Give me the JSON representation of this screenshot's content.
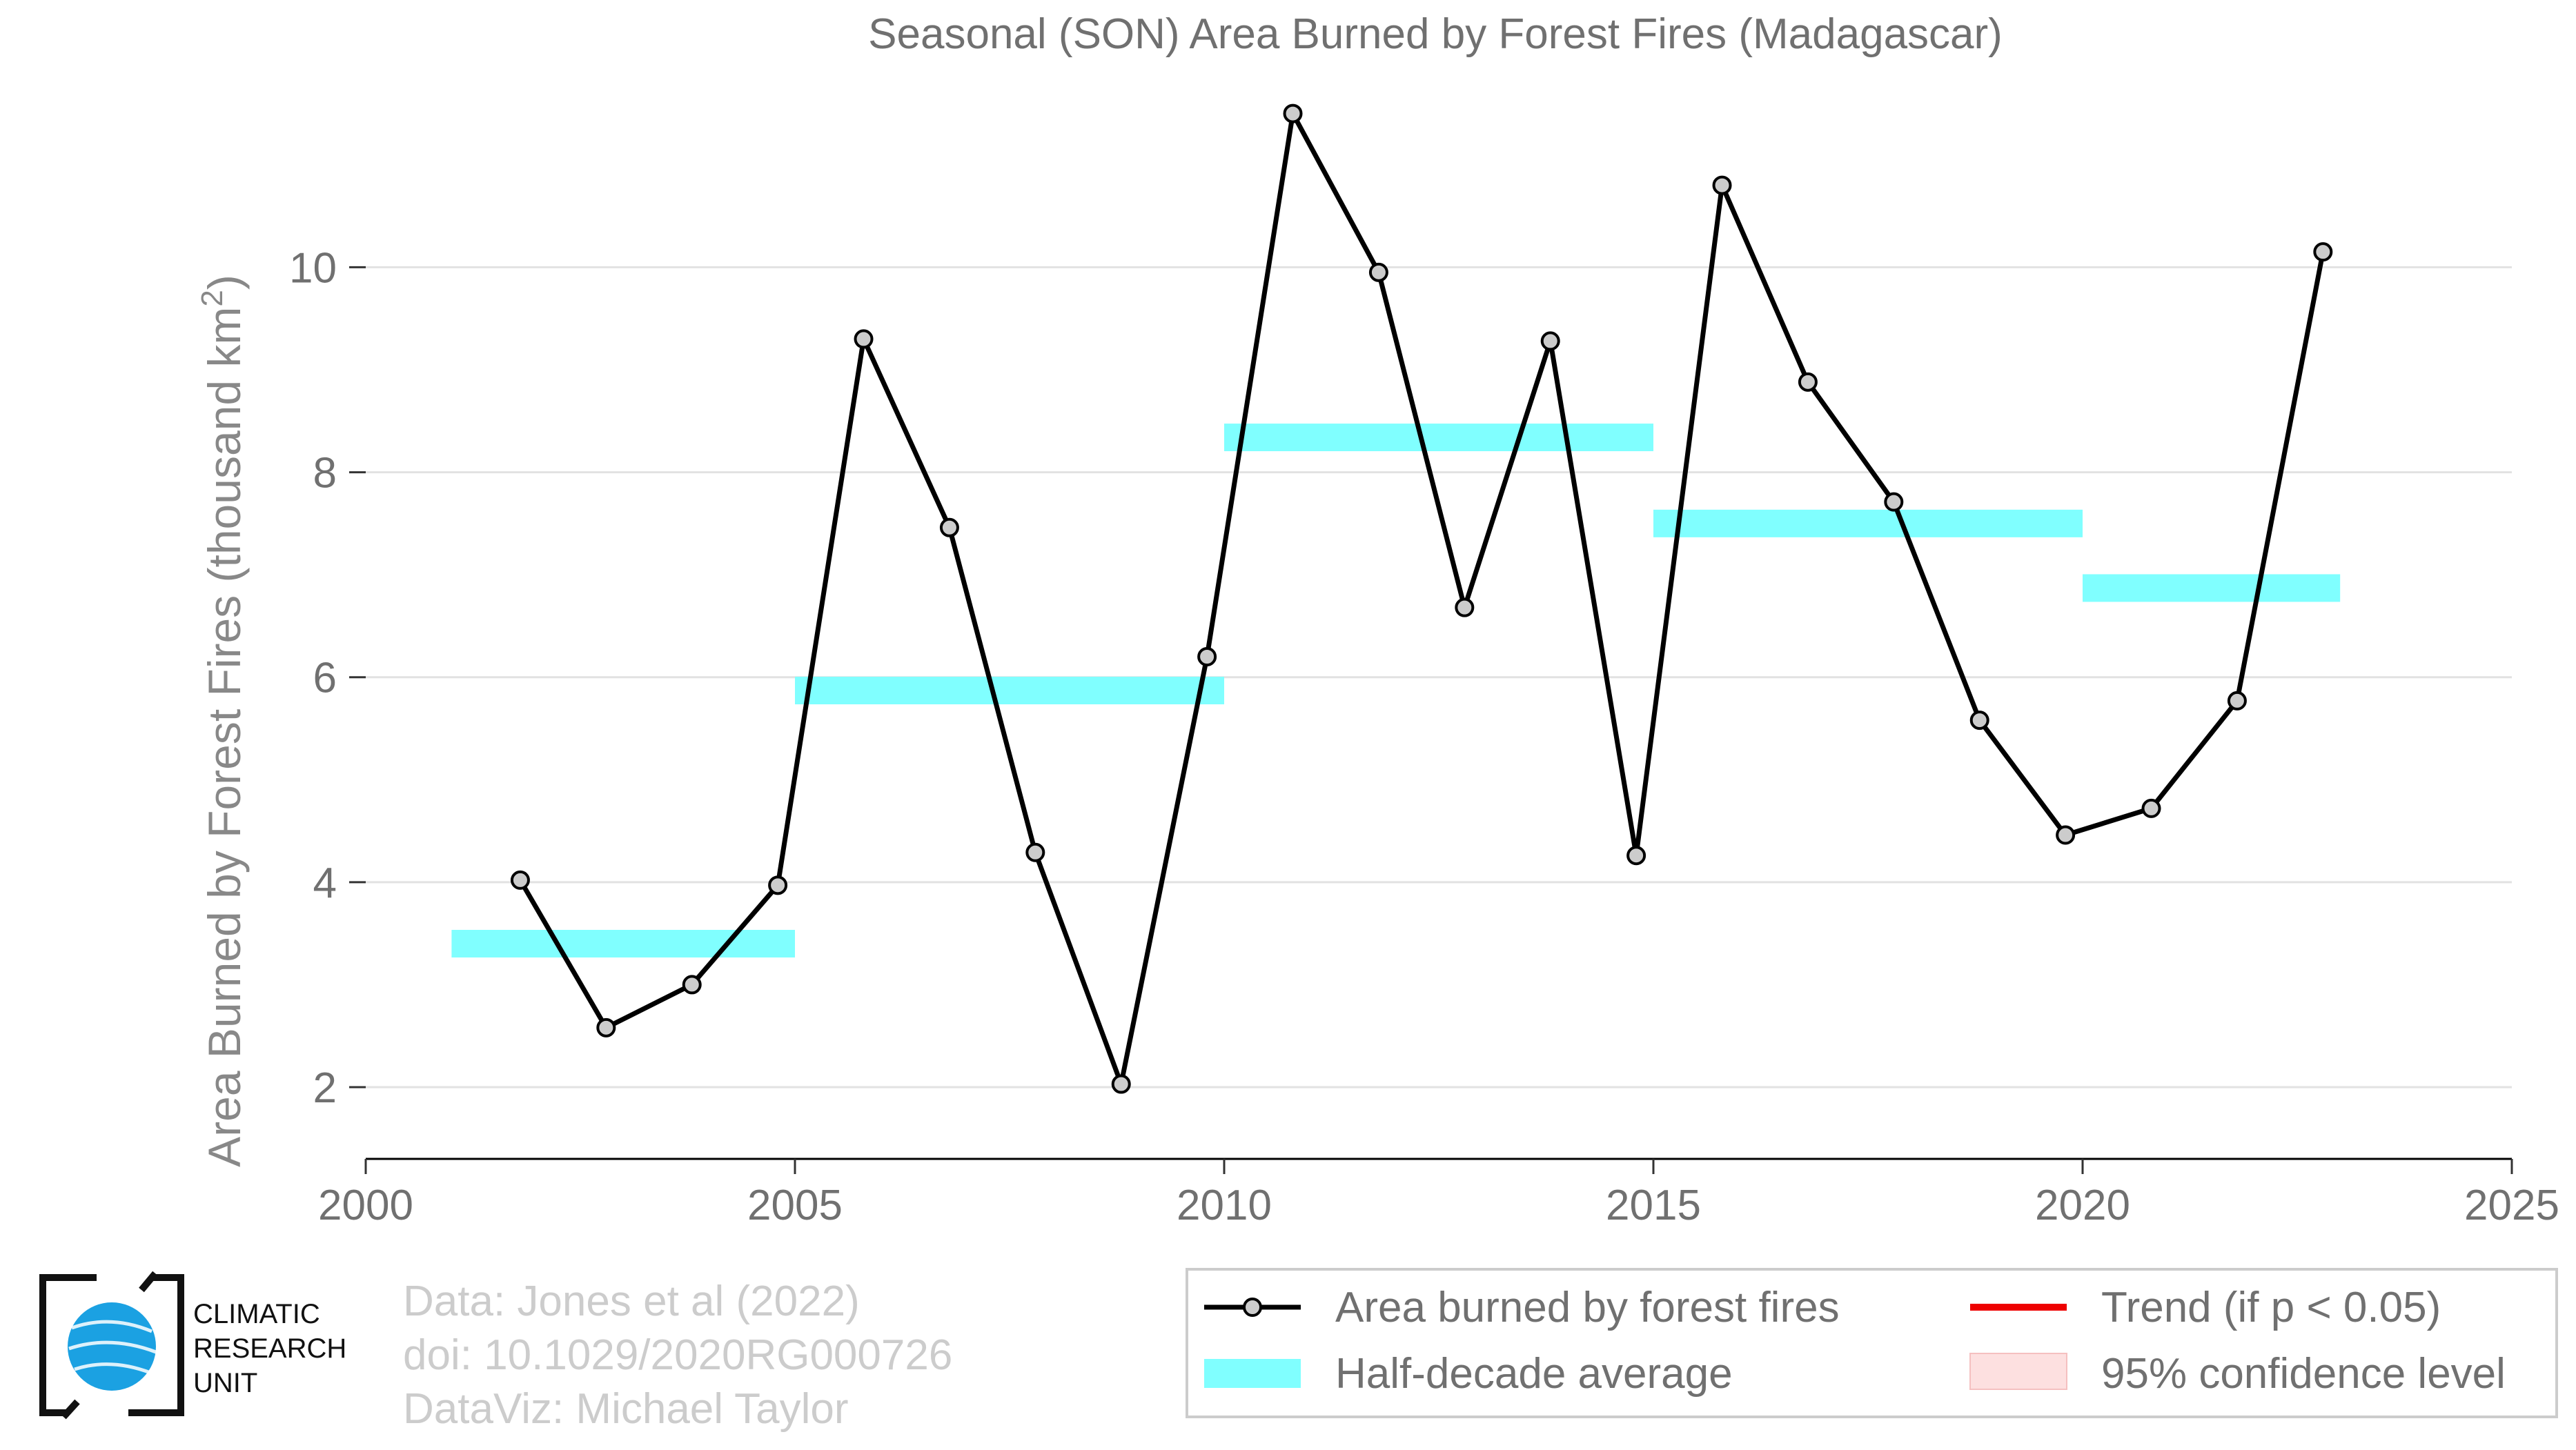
{
  "chart_data": {
    "type": "line",
    "title": "Seasonal (SON) Area Burned by Forest Fires (Madagascar)",
    "xlabel": "",
    "ylabel_main": "Area Burned by Forest Fires (thousand km",
    "ylabel_sup": "2",
    "ylabel_end": ")",
    "xlim": [
      2000,
      2025
    ],
    "ylim": [
      1.3,
      11.8
    ],
    "xticks": [
      2000,
      2005,
      2010,
      2015,
      2020,
      2025
    ],
    "xtick_labels": [
      "2000",
      "2005",
      "2010",
      "2015",
      "2020",
      "2025"
    ],
    "yticks": [
      2,
      4,
      6,
      8,
      10
    ],
    "ytick_labels": [
      "2",
      "4",
      "6",
      "8",
      "10"
    ],
    "grid": "horizontal",
    "series": [
      {
        "name": "Area burned by forest fires",
        "color": "#000000",
        "marker_fill": "#cccccc",
        "x": [
          2001.8,
          2002.8,
          2003.8,
          2004.8,
          2005.8,
          2006.8,
          2007.8,
          2008.8,
          2009.8,
          2010.8,
          2011.8,
          2012.8,
          2013.8,
          2014.8,
          2015.8,
          2016.8,
          2017.8,
          2018.8,
          2019.8,
          2020.8,
          2021.8,
          2022.8
        ],
        "values": [
          4.02,
          2.58,
          3.0,
          3.97,
          9.3,
          7.46,
          4.29,
          2.03,
          6.2,
          11.5,
          9.95,
          6.68,
          9.28,
          4.26,
          10.8,
          8.88,
          7.71,
          5.58,
          4.46,
          4.72,
          5.77,
          10.15
        ]
      }
    ],
    "half_decade_average": {
      "name": "Half-decade average",
      "color": "#80ffff",
      "segments": [
        {
          "x0": 2001,
          "x1": 2005,
          "value": 3.4
        },
        {
          "x0": 2005,
          "x1": 2010,
          "value": 5.87
        },
        {
          "x0": 2010,
          "x1": 2015,
          "value": 8.34
        },
        {
          "x0": 2015,
          "x1": 2020,
          "value": 7.5
        },
        {
          "x0": 2020,
          "x1": 2023,
          "value": 6.87
        }
      ]
    },
    "legend": {
      "placement": "bottom-right",
      "items": [
        {
          "label": "Area burned by forest fires",
          "kind": "line-marker",
          "color": "#000000"
        },
        {
          "label": "Trend (if p < 0.05)",
          "kind": "line",
          "color": "#ee0000"
        },
        {
          "label": "Half-decade average",
          "kind": "band",
          "color": "#80ffff"
        },
        {
          "label": "95% confidence level",
          "kind": "fill",
          "color": "#fde0e0"
        }
      ]
    }
  },
  "logo": {
    "lines": [
      "CLIMATIC",
      "RESEARCH",
      "UNIT"
    ],
    "color": "#1ba1e2"
  },
  "credits": {
    "data": "Data: Jones et al (2022)",
    "doi": "doi: 10.1029/2020RG000726",
    "dataviz": "DataViz: Michael Taylor"
  }
}
